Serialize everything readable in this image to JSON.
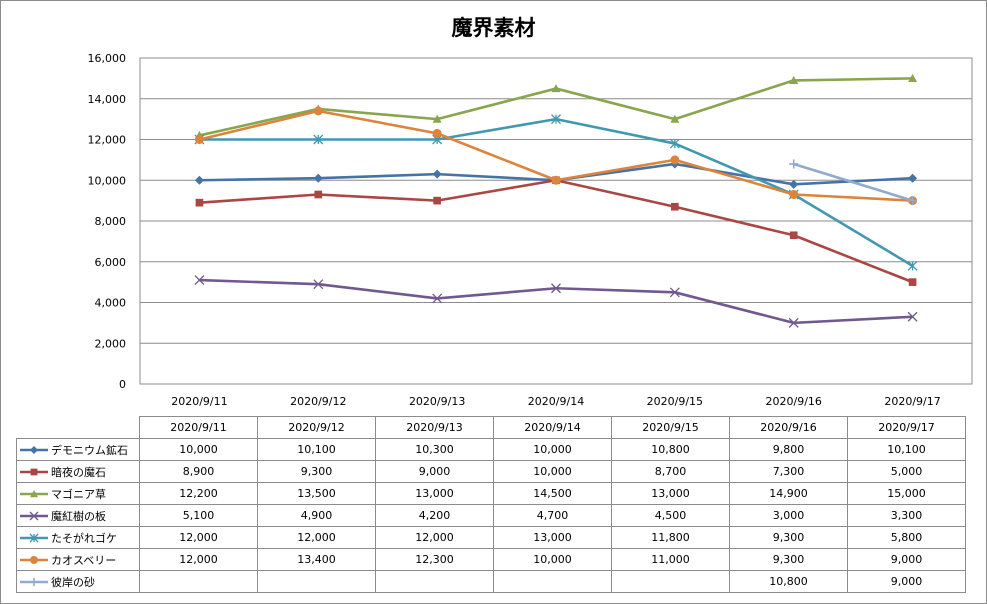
{
  "chart_data": {
    "type": "line",
    "title": "魔界素材",
    "categories": [
      "2020/9/11",
      "2020/9/12",
      "2020/9/13",
      "2020/9/14",
      "2020/9/15",
      "2020/9/16",
      "2020/9/17"
    ],
    "ylim": [
      0,
      16000
    ],
    "yticks": [
      "0",
      "2,000",
      "4,000",
      "6,000",
      "8,000",
      "10,000",
      "12,000",
      "14,000",
      "16,000"
    ],
    "grid": true,
    "legend": "data-table",
    "series": [
      {
        "name": "デモニウム鉱石",
        "color": "#4572a7",
        "marker": "diamond",
        "values": [
          10000,
          10100,
          10300,
          10000,
          10800,
          9800,
          10100
        ],
        "labels": [
          "10,000",
          "10,100",
          "10,300",
          "10,000",
          "10,800",
          "9,800",
          "10,100"
        ]
      },
      {
        "name": "暗夜の魔石",
        "color": "#aa4643",
        "marker": "square",
        "values": [
          8900,
          9300,
          9000,
          10000,
          8700,
          7300,
          5000
        ],
        "labels": [
          "8,900",
          "9,300",
          "9,000",
          "10,000",
          "8,700",
          "7,300",
          "5,000"
        ]
      },
      {
        "name": "マゴニア草",
        "color": "#89a54e",
        "marker": "triangle",
        "values": [
          12200,
          13500,
          13000,
          14500,
          13000,
          14900,
          15000
        ],
        "labels": [
          "12,200",
          "13,500",
          "13,000",
          "14,500",
          "13,000",
          "14,900",
          "15,000"
        ]
      },
      {
        "name": "魔紅樹の板",
        "color": "#71588f",
        "marker": "x",
        "values": [
          5100,
          4900,
          4200,
          4700,
          4500,
          3000,
          3300
        ],
        "labels": [
          "5,100",
          "4,900",
          "4,200",
          "4,700",
          "4,500",
          "3,000",
          "3,300"
        ]
      },
      {
        "name": "たそがれゴケ",
        "color": "#4198af",
        "marker": "star",
        "values": [
          12000,
          12000,
          12000,
          13000,
          11800,
          9300,
          5800
        ],
        "labels": [
          "12,000",
          "12,000",
          "12,000",
          "13,000",
          "11,800",
          "9,300",
          "5,800"
        ]
      },
      {
        "name": "カオスベリー",
        "color": "#db843d",
        "marker": "circle",
        "values": [
          12000,
          13400,
          12300,
          10000,
          11000,
          9300,
          9000
        ],
        "labels": [
          "12,000",
          "13,400",
          "12,300",
          "10,000",
          "11,000",
          "9,300",
          "9,000"
        ]
      },
      {
        "name": "彼岸の砂",
        "color": "#93a9cf",
        "marker": "plus",
        "values": [
          null,
          null,
          null,
          null,
          null,
          10800,
          9000
        ],
        "labels": [
          "",
          "",
          "",
          "",
          "",
          "10,800",
          "9,000"
        ]
      }
    ]
  }
}
